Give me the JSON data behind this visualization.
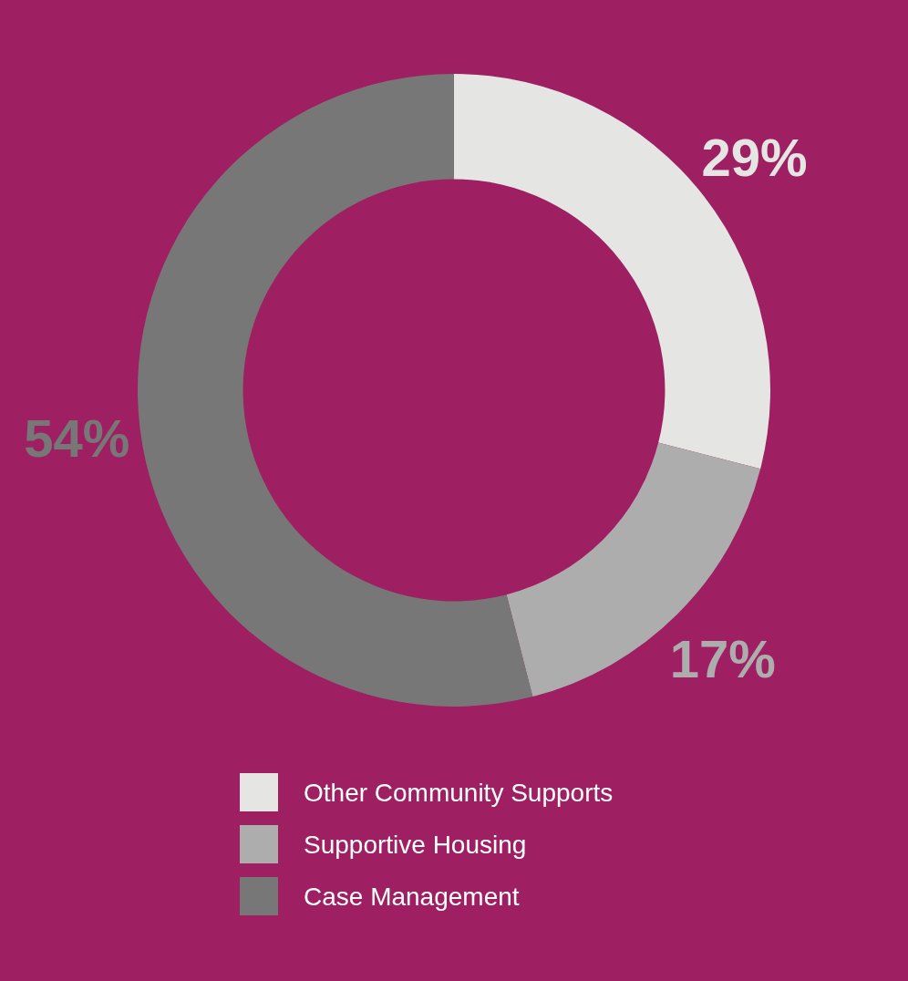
{
  "chart_data": {
    "type": "donut",
    "categories": [
      "Other Community Supports",
      "Supportive Housing",
      "Case Management"
    ],
    "values": [
      29,
      17,
      54
    ],
    "colors": [
      "#e5e5e3",
      "#adadad",
      "#777777"
    ],
    "value_labels": [
      "29%",
      "17%",
      "54%"
    ],
    "legend": "bottom"
  }
}
